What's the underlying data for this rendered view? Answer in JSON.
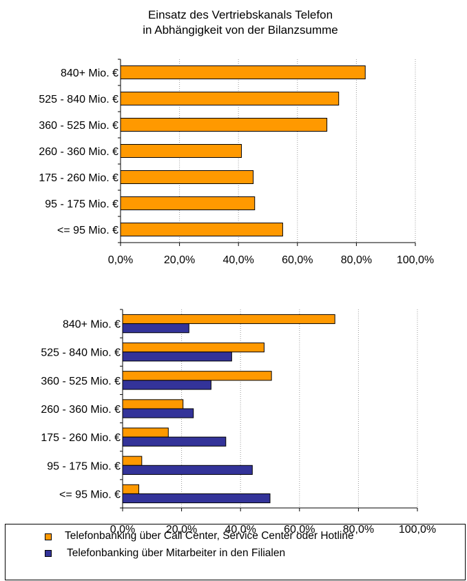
{
  "colors": {
    "orange": "#FF9900",
    "blue": "#333399",
    "grid": "#999999"
  },
  "chart_data": [
    {
      "type": "bar",
      "orientation": "horizontal",
      "title": "Einsatz des Vertriebskanals Telefon\nin Abhängigkeit von der Bilanzsumme",
      "title_lines": [
        "Einsatz des Vertriebskanals Telefon",
        "in Abhängigkeit von der Bilanzsumme"
      ],
      "categories": [
        "840+ Mio. €",
        "525 - 840 Mio. €",
        "360 - 525 Mio. €",
        "260 - 360 Mio. €",
        "175 - 260 Mio. €",
        "95 - 175 Mio. €",
        "<= 95 Mio. €"
      ],
      "series": [
        {
          "values": [
            83,
            74,
            70,
            41,
            45,
            45.5,
            55
          ],
          "color": "#FF9900"
        }
      ],
      "xlim": [
        0,
        100
      ],
      "xticks": [
        "0,0%",
        "20,0%",
        "40,0%",
        "60,0%",
        "80,0%",
        "100,0%"
      ],
      "grid": "vertical-dotted"
    },
    {
      "type": "bar",
      "orientation": "horizontal",
      "categories": [
        "840+ Mio. €",
        "525 - 840 Mio. €",
        "360 - 525 Mio. €",
        "260 - 360 Mio. €",
        "175 - 260 Mio. €",
        "95 - 175 Mio. €",
        "<= 95 Mio. €"
      ],
      "series": [
        {
          "name": "Telefonbanking über Call Center, Service Center oder Hotline",
          "values": [
            72,
            48,
            50.5,
            20.5,
            15.5,
            6.5,
            5.5
          ],
          "color": "#FF9900"
        },
        {
          "name": "Telefonbanking über Mitarbeiter in den Filialen",
          "values": [
            22.5,
            37,
            30,
            24,
            35,
            44,
            50
          ],
          "color": "#333399"
        }
      ],
      "xlim": [
        0,
        100
      ],
      "xticks": [
        "0,0%",
        "20,0%",
        "40,0%",
        "60,0%",
        "80,0%",
        "100,0%"
      ],
      "grid": "vertical-dotted",
      "legend": "bottom"
    }
  ]
}
